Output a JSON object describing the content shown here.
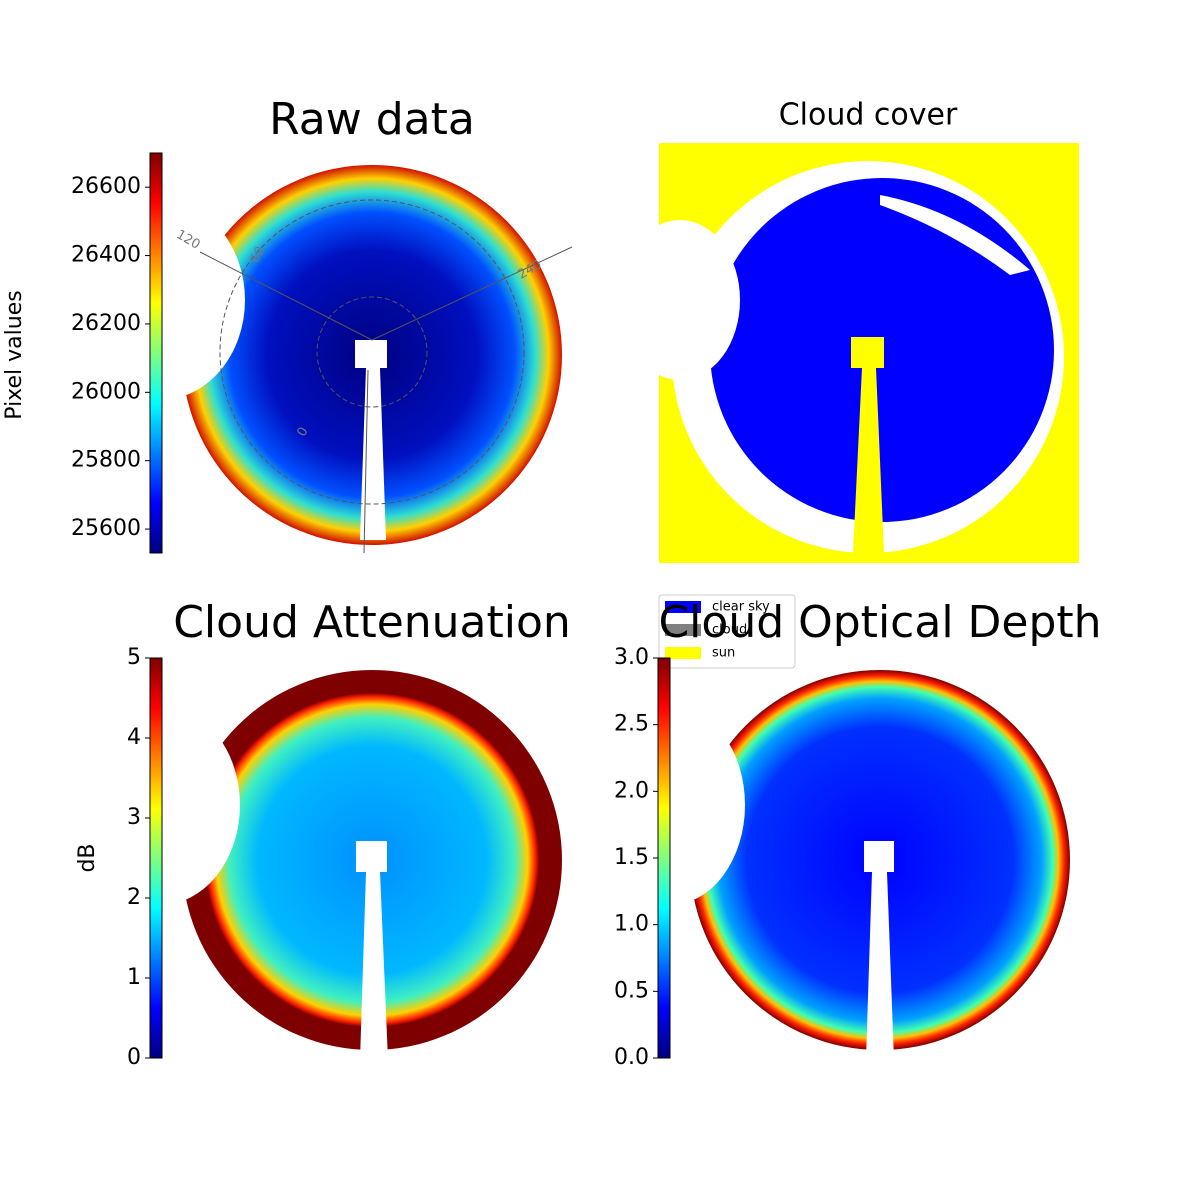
{
  "chart_data": [
    {
      "type": "image",
      "title": "Raw data",
      "colormap": "jet",
      "annotations": [
        "120",
        "60",
        "240",
        "0"
      ],
      "colorbar": {
        "label": "Pixel values",
        "lim": [
          25530,
          26700
        ],
        "ticks": [
          25600,
          25800,
          26000,
          26200,
          26400,
          26600
        ]
      }
    },
    {
      "type": "image",
      "title": "Cloud cover",
      "legend": [
        {
          "name": "clear sky",
          "color": "#0000ff"
        },
        {
          "name": "cloud",
          "color": "#808080"
        },
        {
          "name": "sun",
          "color": "#ffff00"
        }
      ]
    },
    {
      "type": "image",
      "title": "Cloud Attenuation",
      "colormap": "jet",
      "colorbar": {
        "label": "dB",
        "lim": [
          0,
          5
        ],
        "ticks": [
          0,
          1,
          2,
          3,
          4,
          5
        ]
      }
    },
    {
      "type": "image",
      "title": "Cloud Optical Depth",
      "colormap": "jet",
      "colorbar": {
        "lim": [
          0,
          3
        ],
        "ticks": [
          {
            "value": 0,
            "label": "0.0"
          },
          {
            "value": 0.5,
            "label": "0.5"
          },
          {
            "value": 1,
            "label": "1.0"
          },
          {
            "value": 1.5,
            "label": "1.5"
          },
          {
            "value": 2,
            "label": "2.0"
          },
          {
            "value": 2.5,
            "label": "2.5"
          },
          {
            "value": 3,
            "label": "3.0"
          }
        ]
      }
    }
  ]
}
